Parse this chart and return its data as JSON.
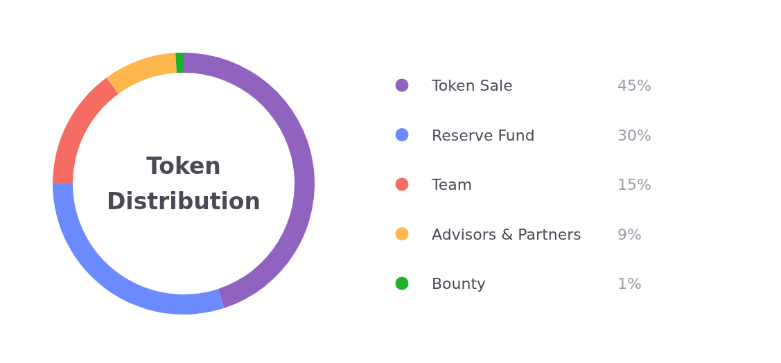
{
  "chart_data": {
    "type": "donut",
    "title": "Token Distribution",
    "categories": [
      "Token Sale",
      "Reserve Fund",
      "Team",
      "Advisors & Partners",
      "Bounty"
    ],
    "values": [
      45,
      30,
      15,
      9,
      1
    ],
    "colors": [
      "#9163c0",
      "#6b8aff",
      "#f56c63",
      "#ffb74d",
      "#1faf2a"
    ],
    "value_labels": [
      "45%",
      "30%",
      "15%",
      "9%",
      "1%"
    ],
    "legend": "right"
  }
}
